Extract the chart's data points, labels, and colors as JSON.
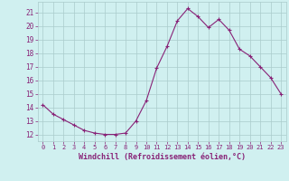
{
  "x": [
    0,
    1,
    2,
    3,
    4,
    5,
    6,
    7,
    8,
    9,
    10,
    11,
    12,
    13,
    14,
    15,
    16,
    17,
    18,
    19,
    20,
    21,
    22,
    23
  ],
  "y": [
    14.2,
    13.5,
    13.1,
    12.7,
    12.3,
    12.1,
    12.0,
    12.0,
    12.1,
    13.0,
    14.5,
    16.9,
    18.5,
    20.4,
    21.3,
    20.7,
    19.9,
    20.5,
    19.7,
    18.3,
    17.8,
    17.0,
    16.2,
    15.0
  ],
  "line_color": "#882277",
  "marker": "+",
  "bg_color": "#d0f0f0",
  "grid_color": "#aacccc",
  "xlabel": "Windchill (Refroidissement éolien,°C)",
  "xlabel_color": "#882277",
  "tick_color": "#882277",
  "ylim": [
    11.5,
    21.8
  ],
  "xlim": [
    -0.5,
    23.5
  ],
  "yticks": [
    12,
    13,
    14,
    15,
    16,
    17,
    18,
    19,
    20,
    21
  ],
  "xticks": [
    0,
    1,
    2,
    3,
    4,
    5,
    6,
    7,
    8,
    9,
    10,
    11,
    12,
    13,
    14,
    15,
    16,
    17,
    18,
    19,
    20,
    21,
    22,
    23
  ],
  "figsize": [
    3.2,
    2.0
  ],
  "dpi": 100
}
